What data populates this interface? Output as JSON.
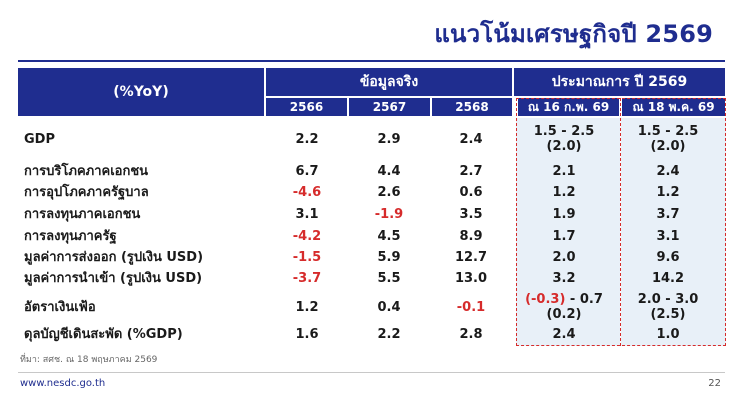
{
  "title": "แนวโน้มเศรษฐกิจปี 2569",
  "header": {
    "yoy": "(%YoY)",
    "actual": "ข้อมูลจริง",
    "forecast": "ประมาณการ ปี 2569",
    "years": [
      "2566",
      "2567",
      "2568"
    ],
    "forecast_dates": [
      "ณ 16 ก.พ. 69",
      "ณ 18 พ.ค. 69"
    ]
  },
  "rows": [
    {
      "label": "GDP",
      "v": [
        "2.2",
        "2.9",
        "2.4"
      ],
      "f1": "1.5 - 2.5",
      "f1b": "(2.0)",
      "f2": "1.5 - 2.5",
      "f2b": "(2.0)"
    },
    {
      "label": "การบริโภคภาคเอกชน",
      "v": [
        "6.7",
        "4.4",
        "2.7"
      ],
      "f1": "2.1",
      "f2": "2.4"
    },
    {
      "label": "การอุปโภคภาครัฐบาล",
      "v": [
        "-4.6",
        "2.6",
        "0.6"
      ],
      "f1": "1.2",
      "f2": "1.2"
    },
    {
      "label": "การลงทุนภาคเอกชน",
      "v": [
        "3.1",
        "-1.9",
        "3.5"
      ],
      "f1": "1.9",
      "f2": "3.7"
    },
    {
      "label": "การลงทุนภาครัฐ",
      "v": [
        "-4.2",
        "4.5",
        "8.9"
      ],
      "f1": "1.7",
      "f2": "3.1"
    },
    {
      "label": "มูลค่าการส่งออก (รูปเงิน USD)",
      "v": [
        "-1.5",
        "5.9",
        "12.7"
      ],
      "f1": "2.0",
      "f2": "9.6"
    },
    {
      "label": "มูลค่าการนำเข้า (รูปเงิน USD)",
      "v": [
        "-3.7",
        "5.5",
        "13.0"
      ],
      "f1": "3.2",
      "f2": "14.2"
    },
    {
      "label": "อัตราเงินเฟ้อ",
      "v": [
        "1.2",
        "0.4",
        "-0.1"
      ],
      "f1a": "(-0.3)",
      "f1": " - 0.7",
      "f1b": "(0.2)",
      "f2": "2.0 - 3.0",
      "f2b": "(2.5)"
    },
    {
      "label": "ดุลบัญชีเดินสะพัด (%GDP)",
      "v": [
        "1.6",
        "2.2",
        "2.8"
      ],
      "f1": "2.4",
      "f2": "1.0"
    }
  ],
  "source": "ที่มา: สศช. ณ 18 พฤษภาคม 2569",
  "website": "www.nesdc.go.th",
  "page_number": "22"
}
